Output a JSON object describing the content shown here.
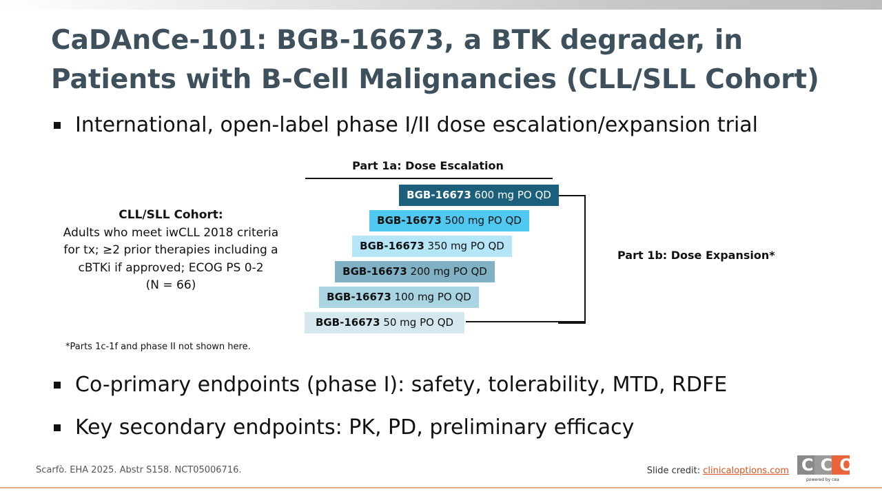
{
  "header": {
    "title": "CaDAnCe-101: BGB-16673, a BTK degrader, in Patients with B-Cell Malignancies (CLL/SLL Cohort)"
  },
  "bullets": [
    "International, open-label phase I/II dose escalation/expansion trial",
    "Co-primary endpoints (phase I): safety, tolerability, MTD, RDFE",
    "Key secondary endpoints: PK, PD, preliminary efficacy"
  ],
  "cohort": {
    "title": "CLL/SLL Cohort:",
    "lines": [
      "Adults who meet iwCLL 2018 criteria",
      "for tx; ≥2 prior therapies including a",
      "cBTKi if approved; ECOG PS 0-2",
      "(N = 66)"
    ]
  },
  "diagram": {
    "escalation_label": "Part 1a: Dose Escalation",
    "expansion_label": "Part 1b: Dose Expansion*",
    "doses": [
      {
        "drug": "BGB-16673",
        "dose": "600 mg PO QD"
      },
      {
        "drug": "BGB-16673",
        "dose": "500 mg PO QD"
      },
      {
        "drug": "BGB-16673",
        "dose": "350 mg PO QD"
      },
      {
        "drug": "BGB-16673",
        "dose": "200 mg PO QD"
      },
      {
        "drug": "BGB-16673",
        "dose": "100 mg PO QD"
      },
      {
        "drug": "BGB-16673",
        "dose": "50 mg PO QD"
      }
    ]
  },
  "footnote": "*Parts 1c-1f and phase II not shown here.",
  "footer": {
    "citation": "Scarfò. EHA 2025. Abstr S158. NCT05006716.",
    "credit_label": "Slide credit:",
    "credit_link": "clinicaloptions.com",
    "logo": "CCO",
    "logo_tagline": "powered by cea"
  }
}
